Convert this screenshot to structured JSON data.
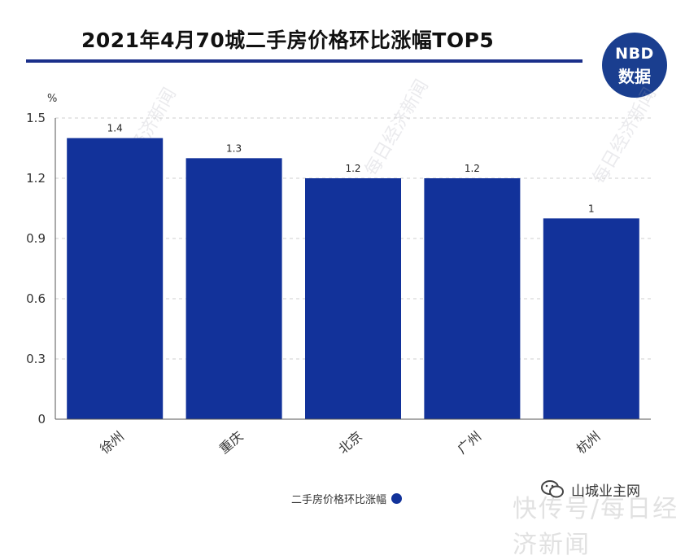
{
  "title": "2021年4月70城二手房价格环比涨幅TOP5",
  "logo": {
    "line1": "NBD",
    "line2": "数据"
  },
  "watermark_text": "每日经济新闻",
  "wechat_label": "山城业主网",
  "bottom_watermark": "快传号/每日经济新闻",
  "chart_data": {
    "type": "bar",
    "categories": [
      "徐州",
      "重庆",
      "北京",
      "广州",
      "杭州"
    ],
    "series": [
      {
        "name": "二手房价格环比涨幅",
        "values": [
          1.4,
          1.3,
          1.2,
          1.2,
          1
        ]
      }
    ],
    "data_labels": [
      "1.4",
      "1.3",
      "1.2",
      "1.2",
      "1"
    ],
    "ylabel": "%",
    "ylim": [
      0,
      1.5
    ],
    "yticks": [
      "0",
      "0.3",
      "0.6",
      "0.9",
      "1.2",
      "1.5"
    ],
    "grid": true,
    "legend": "bottom",
    "bar_color": "#12329a"
  }
}
